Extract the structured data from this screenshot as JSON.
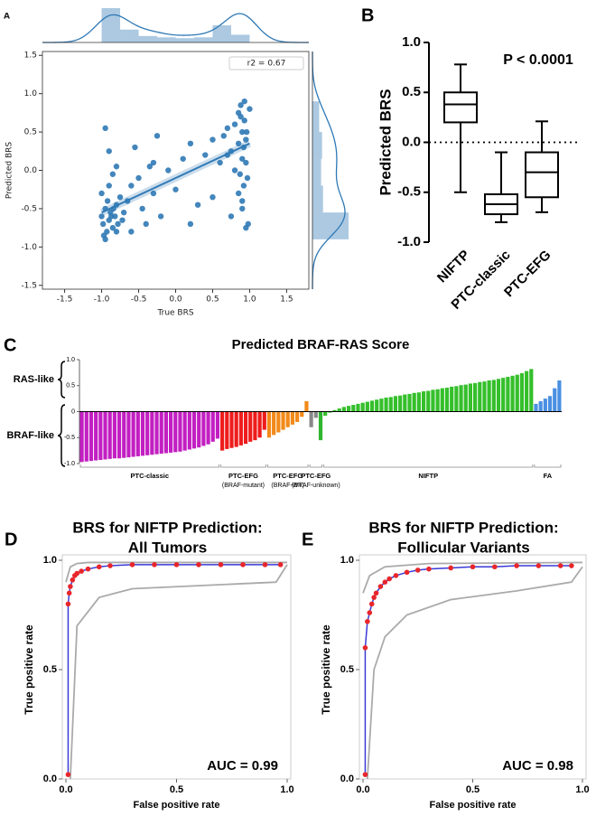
{
  "chart_data": [
    {
      "type": "scatter",
      "panel": "A",
      "xlabel": "True BRS",
      "ylabel": "Predicted BRS",
      "annotation": "r2 = 0.67",
      "color": "#2f79b5",
      "xlim": [
        -1.8,
        1.8
      ],
      "ylim": [
        -1.55,
        1.55
      ],
      "xticks": [
        -1.5,
        {
          "value": -1.0,
          "label": "-1.0"
        },
        -0.5,
        {
          "value": 0,
          "label": "0.0"
        },
        0.5,
        {
          "value": 1.0,
          "label": "1.0"
        },
        1.5
      ],
      "yticks": [
        -1.5,
        {
          "value": -1.0,
          "label": "-1.0"
        },
        -0.5,
        {
          "value": 0,
          "label": "0.0"
        },
        0.5,
        {
          "value": 1.0,
          "label": "1.0"
        },
        1.5
      ],
      "x": [
        -1.0,
        -0.98,
        -0.95,
        -0.93,
        -0.9,
        -0.88,
        -0.85,
        -0.82,
        -0.8,
        -0.78,
        -1.0,
        -0.97,
        -0.92,
        -0.9,
        -0.87,
        -0.84,
        -0.8,
        -0.75,
        -0.72,
        -0.7,
        -0.95,
        -0.9,
        -0.85,
        -0.8,
        -0.65,
        -0.6,
        -0.55,
        -0.5,
        -0.45,
        -0.4,
        -0.35,
        -0.3,
        -0.25,
        -0.2,
        -0.1,
        0.0,
        0.1,
        0.2,
        0.3,
        0.4,
        0.5,
        0.6,
        0.7,
        0.75,
        0.8,
        0.85,
        0.88,
        0.9,
        0.92,
        0.95,
        0.97,
        1.0,
        0.85,
        0.9,
        0.93,
        0.95,
        0.98,
        0.8,
        0.75,
        0.7,
        0.88,
        0.92,
        0.96,
        0.9,
        0.85,
        -0.95,
        -0.6,
        -0.3,
        0.2,
        0.5,
        0.65,
        0.95,
        0.9,
        0.87,
        0.93
      ],
      "y": [
        -0.6,
        -0.7,
        -0.5,
        -0.8,
        -0.65,
        -0.55,
        -0.75,
        -0.6,
        -0.45,
        -0.7,
        -0.3,
        -0.85,
        -0.4,
        -0.2,
        -0.6,
        -0.5,
        -0.8,
        -0.35,
        -0.65,
        -0.55,
        0.55,
        0.25,
        -0.05,
        0.05,
        -0.4,
        -0.2,
        0.3,
        -0.1,
        -0.5,
        -0.7,
        0.05,
        -0.3,
        0.45,
        -0.6,
        0.0,
        -0.25,
        0.15,
        0.35,
        -0.45,
        0.2,
        0.4,
        0.1,
        0.55,
        0.25,
        0.6,
        0.75,
        0.85,
        0.5,
        0.3,
        0.1,
        -0.1,
        0.8,
        -0.3,
        -0.5,
        0.65,
        0.4,
        -0.7,
        0.0,
        -0.6,
        0.2,
        0.7,
        -0.2,
        0.5,
        -0.4,
        0.35,
        -0.9,
        -0.8,
        0.1,
        -0.7,
        -0.35,
        0.45,
        -0.75,
        0.15,
        -0.05,
        0.9
      ],
      "fit": {
        "x": [
          -1.0,
          1.0
        ],
        "y": [
          -0.55,
          0.35
        ]
      },
      "top_hist": {
        "bins": [
          -1.0,
          -0.75,
          -0.5,
          -0.25,
          0,
          0.25,
          0.5,
          0.75,
          1.0
        ],
        "counts": [
          80,
          30,
          15,
          12,
          10,
          12,
          40,
          18
        ]
      },
      "right_hist": {
        "bins": [
          -0.9,
          -0.55,
          -0.2,
          0.15,
          0.5,
          0.9
        ],
        "counts": [
          75,
          22,
          18,
          20,
          14
        ]
      }
    },
    {
      "type": "box",
      "panel": "B",
      "ylabel": "Predicted BRS",
      "annotation": "P < 0.0001",
      "ylim": [
        -1,
        1
      ],
      "refline": 0,
      "yticks": [
        {
          "value": -1.0,
          "label": "-1.0"
        },
        -0.5,
        {
          "value": 0,
          "label": "0.0"
        },
        0.5,
        {
          "value": 1.0,
          "label": "1.0"
        }
      ],
      "categories": [
        "NIFTP",
        "PTC-classic",
        "PTC-EFG"
      ],
      "boxes": [
        {
          "min": -0.5,
          "q1": 0.2,
          "median": 0.38,
          "q3": 0.5,
          "max": 0.78
        },
        {
          "min": -0.8,
          "q1": -0.72,
          "median": -0.62,
          "q3": -0.52,
          "max": -0.1
        },
        {
          "min": -0.7,
          "q1": -0.55,
          "median": -0.3,
          "q3": -0.1,
          "max": 0.21
        }
      ]
    },
    {
      "type": "bar",
      "panel": "C",
      "title": "Predicted BRAF-RAS Score",
      "upper_label": "RAS-like",
      "lower_label": "BRAF-like",
      "ylim": [
        -1,
        1
      ],
      "yticks": [
        {
          "value": -1.0,
          "label": "-1.0"
        },
        -0.5,
        0,
        0.5,
        {
          "value": 1.0,
          "label": "1.0"
        }
      ],
      "series": [
        {
          "name": "PTC-classic",
          "color": "#c21fc2",
          "values": [
            -0.97,
            -0.96,
            -0.95,
            -0.94,
            -0.93,
            -0.92,
            -0.91,
            -0.9,
            -0.9,
            -0.89,
            -0.88,
            -0.87,
            -0.86,
            -0.85,
            -0.84,
            -0.83,
            -0.82,
            -0.81,
            -0.8,
            -0.79,
            -0.78,
            -0.77,
            -0.75,
            -0.73,
            -0.71,
            -0.69,
            -0.66,
            -0.63,
            -0.58,
            -0.52
          ]
        },
        {
          "name": "PTC-EFG",
          "sublabel": "(BRAF-mutant)",
          "color": "#ee1c1c",
          "values": [
            -0.75,
            -0.72,
            -0.7,
            -0.68,
            -0.65,
            -0.62,
            -0.58,
            -0.55,
            -0.5,
            -0.35
          ]
        },
        {
          "name": "PTC-EFG",
          "sublabel": "(BRAF-WT)",
          "color": "#f28a1a",
          "values": [
            -0.5,
            -0.45,
            -0.4,
            -0.35,
            -0.3,
            -0.25,
            -0.2,
            -0.1,
            0.2
          ]
        },
        {
          "name": "PTC-EFG",
          "sublabel": "(BRAF-unknown)",
          "color": "#888888",
          "colors": [
            "#888888",
            "#888888",
            "#2fb52f"
          ],
          "values": [
            -0.3,
            -0.12,
            -0.55
          ]
        },
        {
          "name": "NIFTP",
          "color": "#35bf2b",
          "values": [
            -0.08,
            -0.02,
            0.03,
            0.06,
            0.09,
            0.11,
            0.13,
            0.15,
            0.17,
            0.19,
            0.21,
            0.23,
            0.25,
            0.27,
            0.28,
            0.3,
            0.31,
            0.33,
            0.34,
            0.36,
            0.37,
            0.39,
            0.4,
            0.42,
            0.43,
            0.45,
            0.46,
            0.48,
            0.49,
            0.51,
            0.52,
            0.54,
            0.55,
            0.57,
            0.58,
            0.6,
            0.61,
            0.63,
            0.65,
            0.67,
            0.69,
            0.71,
            0.74,
            0.78,
            0.82
          ]
        },
        {
          "name": "FA",
          "color": "#4a90e2",
          "values": [
            0.15,
            0.2,
            0.25,
            0.3,
            0.45,
            0.6
          ]
        }
      ]
    },
    {
      "type": "line",
      "panel": "D",
      "title": [
        "BRS for NIFTP Prediction:",
        "All Tumors"
      ],
      "annotation": "AUC = 0.99",
      "xlabel": "False positive rate",
      "ylabel": "True positive rate",
      "color": "#3a3ad8",
      "point_color": "#e8262b",
      "band_color": "#aaaaaa",
      "xlim": [
        0,
        1
      ],
      "ylim": [
        0,
        1
      ],
      "xticks": [
        {
          "value": 0,
          "label": "0.0"
        },
        0.5,
        {
          "value": 1.0,
          "label": "1.0"
        }
      ],
      "yticks": [
        {
          "value": 0,
          "label": "0.0"
        },
        0.5,
        {
          "value": 1.0,
          "label": "1.0"
        }
      ],
      "curve": {
        "x": [
          0.01,
          0.01,
          0.015,
          0.02,
          0.03,
          0.04,
          0.05,
          0.07,
          0.1,
          0.15,
          0.2,
          0.3,
          0.4,
          0.5,
          0.6,
          0.7,
          0.8,
          0.9,
          0.97
        ],
        "y": [
          0.02,
          0.8,
          0.85,
          0.88,
          0.91,
          0.93,
          0.94,
          0.95,
          0.96,
          0.97,
          0.975,
          0.98,
          0.98,
          0.98,
          0.98,
          0.98,
          0.98,
          0.98,
          0.98
        ]
      },
      "upper_band": {
        "x": [
          0.0,
          0.02,
          0.05,
          0.1,
          0.2,
          1.0
        ],
        "y": [
          0.9,
          0.97,
          0.985,
          0.99,
          0.99,
          0.99
        ]
      },
      "lower_band": {
        "x": [
          0.02,
          0.05,
          0.15,
          0.3,
          0.95,
          1.0
        ],
        "y": [
          0.0,
          0.7,
          0.83,
          0.87,
          0.9,
          0.98
        ]
      }
    },
    {
      "type": "line",
      "panel": "E",
      "title": [
        "BRS for NIFTP Prediction:",
        "Follicular Variants"
      ],
      "annotation": "AUC = 0.98",
      "xlabel": "False positive rate",
      "ylabel": "True positive rate",
      "color": "#3a3ad8",
      "point_color": "#e8262b",
      "band_color": "#aaaaaa",
      "xlim": [
        0,
        1
      ],
      "ylim": [
        0,
        1
      ],
      "xticks": [
        {
          "value": 0,
          "label": "0.0"
        },
        0.5,
        {
          "value": 1.0,
          "label": "1.0"
        }
      ],
      "yticks": [
        {
          "value": 0,
          "label": "0.0"
        },
        0.5,
        {
          "value": 1.0,
          "label": "1.0"
        }
      ],
      "curve": {
        "x": [
          0.01,
          0.01,
          0.02,
          0.03,
          0.04,
          0.05,
          0.06,
          0.08,
          0.1,
          0.12,
          0.15,
          0.2,
          0.25,
          0.3,
          0.4,
          0.5,
          0.6,
          0.7,
          0.8,
          0.9,
          0.95
        ],
        "y": [
          0.02,
          0.6,
          0.72,
          0.76,
          0.8,
          0.83,
          0.85,
          0.88,
          0.9,
          0.915,
          0.93,
          0.945,
          0.955,
          0.96,
          0.965,
          0.97,
          0.97,
          0.975,
          0.975,
          0.975,
          0.975
        ]
      },
      "upper_band": {
        "x": [
          0.0,
          0.03,
          0.1,
          0.3,
          1.0
        ],
        "y": [
          0.85,
          0.93,
          0.97,
          0.985,
          0.99
        ]
      },
      "lower_band": {
        "x": [
          0.02,
          0.05,
          0.1,
          0.2,
          0.4,
          0.7,
          0.95,
          1.0
        ],
        "y": [
          0.0,
          0.5,
          0.65,
          0.75,
          0.82,
          0.86,
          0.9,
          0.97
        ]
      }
    }
  ]
}
